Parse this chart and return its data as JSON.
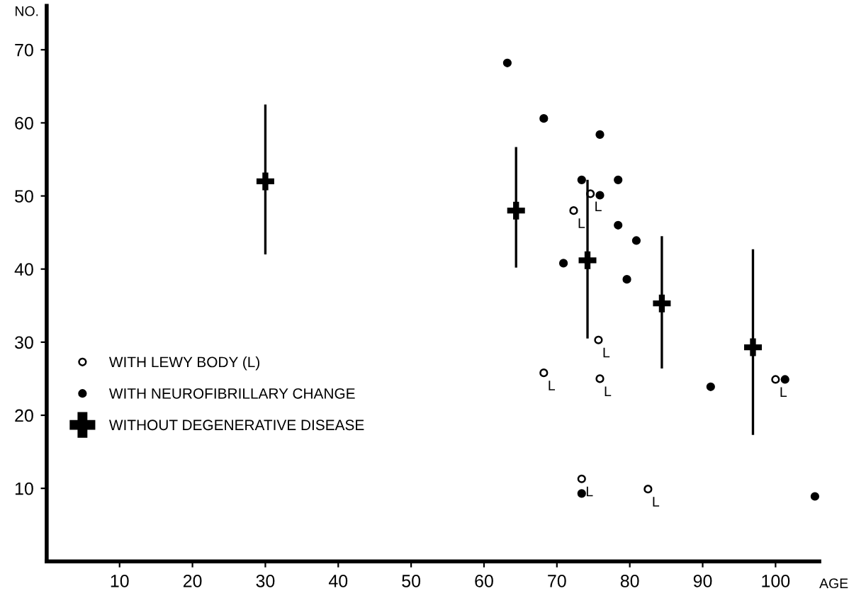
{
  "chart_data": {
    "type": "scatter",
    "xlabel": "AGE",
    "ylabel": "NO.",
    "xlim": [
      0,
      106
    ],
    "ylim": [
      0,
      76
    ],
    "xticks": [
      10,
      20,
      30,
      40,
      50,
      60,
      70,
      80,
      90,
      100
    ],
    "yticks": [
      10,
      20,
      30,
      40,
      50,
      60,
      70
    ],
    "grid": false,
    "legend": "left",
    "series": [
      {
        "name": "WITH LEWY BODY (L)",
        "color": "#ffffff",
        "marker": "circle",
        "x": [
          74.6,
          72.3,
          75.7,
          68.2,
          75.9,
          100,
          73.4,
          82.5
        ],
        "values": [
          50.3,
          48.0,
          30.3,
          25.8,
          25.0,
          24.9,
          11.3,
          9.9
        ]
      },
      {
        "name": "WITH NEUROFIBRILLARY CHANGE",
        "color": "#000000",
        "marker": "circle",
        "x": [
          63.2,
          68.2,
          75.9,
          73.4,
          78.4,
          75.9,
          78.4,
          80.9,
          70.9,
          79.6,
          91.1,
          101.3,
          73.4,
          105.4
        ],
        "values": [
          68.2,
          60.6,
          58.4,
          52.2,
          52.2,
          50.1,
          46.0,
          43.9,
          40.8,
          38.6,
          23.9,
          24.9,
          9.3,
          8.9
        ]
      },
      {
        "name": "WITHOUT DEGENERATIVE DISEASE",
        "color": "#000000",
        "marker": "cross",
        "x": [
          30,
          64.4,
          74.2,
          84.4,
          96.9
        ],
        "values": [
          52,
          48,
          41.2,
          35.3,
          29.3
        ],
        "errors": [
          [
            42,
            62.5
          ],
          [
            40.2,
            56.7
          ],
          [
            30.5,
            52.2
          ],
          [
            26.4,
            44.5
          ],
          [
            17.3,
            42.7
          ]
        ]
      }
    ],
    "annotations": [
      {
        "text": "L",
        "x": 74.6,
        "y": 50.3
      },
      {
        "text": "L",
        "x": 72.3,
        "y": 48.0
      },
      {
        "text": "L",
        "x": 75.7,
        "y": 30.3
      },
      {
        "text": "L",
        "x": 68.2,
        "y": 25.8
      },
      {
        "text": "L",
        "x": 75.9,
        "y": 25.0
      },
      {
        "text": "L",
        "x": 100,
        "y": 24.9
      },
      {
        "text": "L",
        "x": 73.4,
        "y": 11.3
      },
      {
        "text": "L",
        "x": 82.5,
        "y": 9.9
      }
    ]
  }
}
